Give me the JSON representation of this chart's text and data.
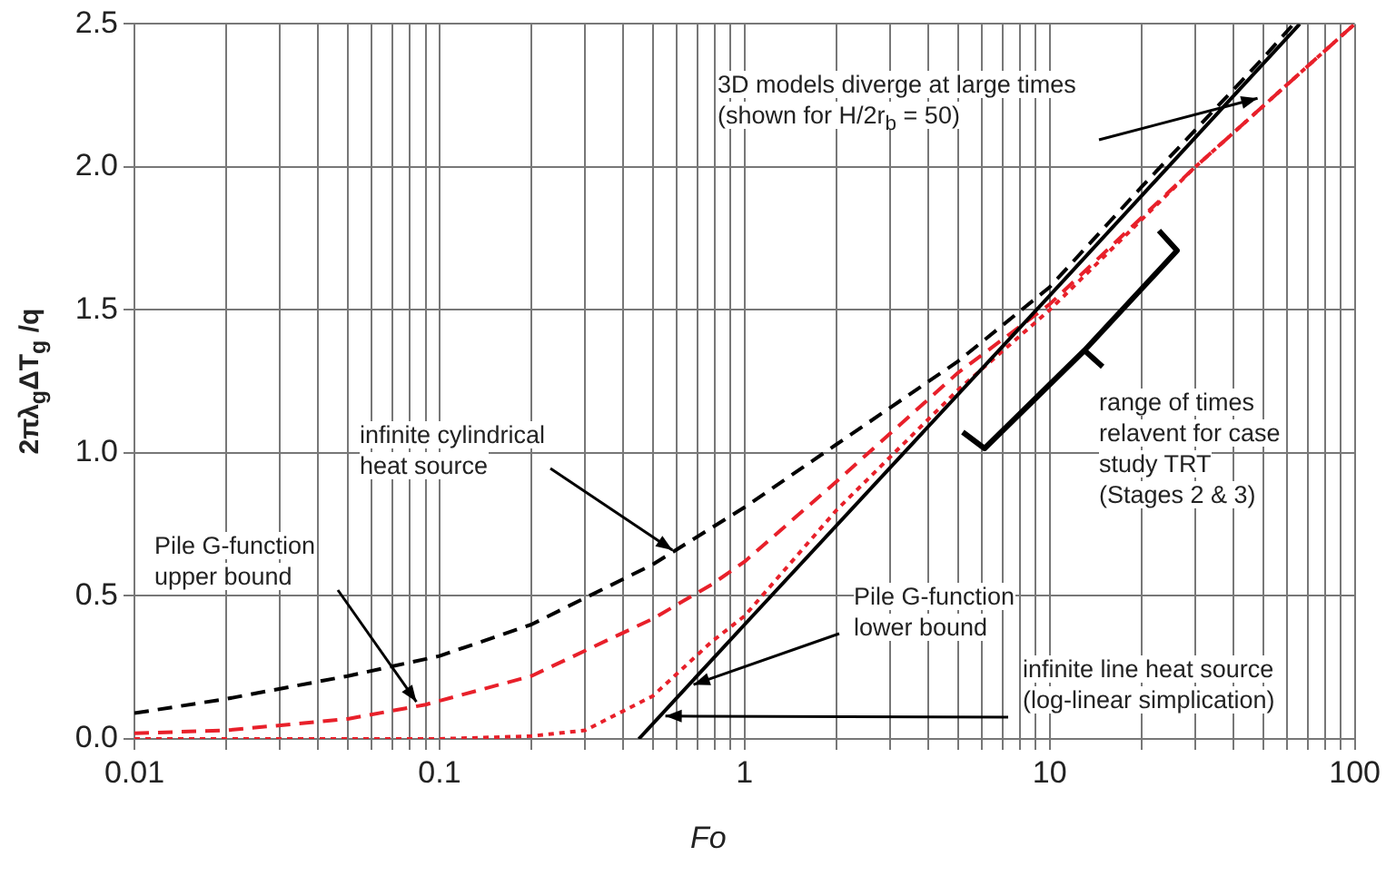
{
  "chart_data": {
    "type": "line",
    "xlabel": "Fo",
    "ylabel": "2πλ$_{g}$ΔT$_{g}$ /q",
    "log": "x",
    "grid": true,
    "legend": false,
    "marker": "none",
    "xlim": [
      0.01,
      100
    ],
    "ylim": [
      0,
      2.5
    ],
    "xticks": [
      0.01,
      {
        "value": 0.02,
        "label": null
      },
      {
        "value": 0.03,
        "label": null
      },
      {
        "value": 0.04,
        "label": null
      },
      {
        "value": 0.05,
        "label": null
      },
      {
        "value": 0.06,
        "label": null
      },
      {
        "value": 0.07,
        "label": null
      },
      {
        "value": 0.08,
        "label": null
      },
      {
        "value": 0.09,
        "label": null
      },
      0.1,
      {
        "value": 0.2,
        "label": null
      },
      {
        "value": 0.3,
        "label": null
      },
      {
        "value": 0.4,
        "label": null
      },
      {
        "value": 0.5,
        "label": null
      },
      {
        "value": 0.6,
        "label": null
      },
      {
        "value": 0.7,
        "label": null
      },
      {
        "value": 0.8,
        "label": null
      },
      {
        "value": 0.9,
        "label": null
      },
      1,
      {
        "value": 2,
        "label": null
      },
      {
        "value": 3,
        "label": null
      },
      {
        "value": 4,
        "label": null
      },
      {
        "value": 5,
        "label": null
      },
      {
        "value": 6,
        "label": null
      },
      {
        "value": 7,
        "label": null
      },
      {
        "value": 8,
        "label": null
      },
      {
        "value": 9,
        "label": null
      },
      10,
      {
        "value": 20,
        "label": null
      },
      {
        "value": 30,
        "label": null
      },
      {
        "value": 40,
        "label": null
      },
      {
        "value": 50,
        "label": null
      },
      {
        "value": 60,
        "label": null
      },
      {
        "value": 70,
        "label": null
      },
      {
        "value": 80,
        "label": null
      },
      {
        "value": 90,
        "label": null
      },
      100
    ],
    "yticks": [
      {
        "value": 0,
        "label": "0.0"
      },
      {
        "value": 0.5,
        "label": "0.5"
      },
      {
        "value": 1,
        "label": "1.0"
      },
      {
        "value": 1.5,
        "label": "1.5"
      },
      {
        "value": 2,
        "label": "2.0"
      },
      {
        "value": 2.5,
        "label": "2.5"
      }
    ],
    "series": [
      {
        "type": "line",
        "color": "#000000",
        "line_style": "dashed",
        "x": [
          0.01,
          0.02,
          0.05,
          0.1,
          0.2,
          0.5,
          1,
          2,
          5,
          10,
          20,
          50,
          63
        ],
        "values": [
          0.09,
          0.14,
          0.22,
          0.29,
          0.4,
          0.61,
          0.81,
          1.03,
          1.32,
          1.58,
          1.93,
          2.38,
          2.5
        ]
      },
      {
        "type": "line",
        "color": "#000000",
        "line_style": "solid",
        "x": [
          0.45,
          1,
          10,
          66
        ],
        "values": [
          0,
          0.4,
          1.55,
          2.5
        ]
      },
      {
        "type": "line",
        "color": "#e8202a",
        "line_style": "dashed",
        "x": [
          0.01,
          0.02,
          0.05,
          0.09,
          0.2,
          0.5,
          0.78,
          1,
          2,
          5,
          10,
          30,
          100
        ],
        "values": [
          0.02,
          0.03,
          0.07,
          0.12,
          0.22,
          0.42,
          0.54,
          0.62,
          0.9,
          1.28,
          1.52,
          2,
          2.5
        ]
      },
      {
        "type": "line",
        "color": "#e8202a",
        "line_style": "dotted",
        "x": [
          0.01,
          0.1,
          0.2,
          0.3,
          0.5,
          0.78,
          1,
          2,
          5,
          10,
          30,
          100
        ],
        "values": [
          0,
          0,
          0.01,
          0.03,
          0.15,
          0.34,
          0.43,
          0.8,
          1.22,
          1.5,
          2,
          2.5
        ]
      }
    ],
    "annotations": [
      {
        "text": "3D models diverge at large times (shown for H/2r$_{b}$ = 50)",
        "x": 48,
        "y": 2.24
      },
      "range of times relavent for case study TRT (Stages 2 & 3)",
      {
        "text": "infinite cylindrical heat source",
        "x": 0.58,
        "y": 0.66
      },
      {
        "text": "Pile G-function upper bound",
        "x": 0.084,
        "y": 0.13
      },
      {
        "text": "Pile G-function lower bound",
        "x": 0.68,
        "y": 0.19
      },
      {
        "text": "infinite line heat source (log-linear simplication)",
        "x": 0.55,
        "y": 0.08
      }
    ]
  }
}
